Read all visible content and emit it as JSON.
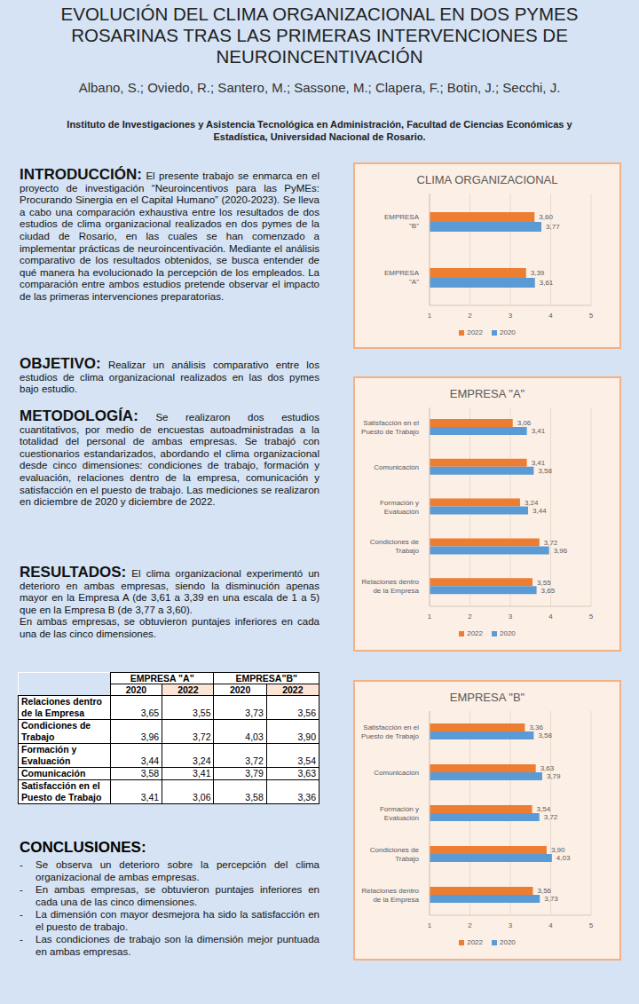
{
  "header": {
    "title": "EVOLUCIÓN DEL CLIMA ORGANIZACIONAL EN DOS PYMES ROSARINAS TRAS LAS PRIMERAS INTERVENCIONES DE NEUROINCENTIVACIÓN",
    "authors": "Albano, S.; Oviedo, R.; Santero, M.; Sassone, M.; Clapera, F.; Botin, J.; Secchi, J.",
    "institution": "Instituto de Investigaciones y Asistencia Tecnológica en Administración, Facultad de Ciencias Económicas y Estadística, Universidad Nacional de Rosario."
  },
  "sections": [
    {
      "heading": "INTRODUCCIÓN",
      "paragraphs": [
        "El presente trabajo se enmarca en el proyecto de investigación “Neuroincentivos para las PyMEs: Procurando Sinergia en el Capital Humano” (2020-2023). Se lleva a cabo una comparación exhaustiva entre los resultados de dos estudios de clima organizacional realizados en dos pymes de la ciudad de Rosario, en las cuales se han comenzado a implementar prácticas de neuroincentivación. Mediante el análisis comparativo de los resultados obtenidos, se busca entender de qué manera ha evolucionado la percepción de los empleados. La comparación entre ambos estudios pretende observar el impacto de las primeras intervenciones preparatorias."
      ]
    },
    {
      "heading": "OBJETIVO",
      "paragraphs": [
        "Realizar un análisis comparativo entre los estudios de clima organizacional realizados en las dos pymes bajo estudio."
      ]
    },
    {
      "heading": "METODOLOGÍA",
      "paragraphs": [
        "Se realizaron dos estudios cuantitativos, por medio de encuestas autoadministradas a la totalidad del personal de ambas empresas. Se trabajó con cuestionarios estandarizados, abordando el clima organizacional desde cinco dimensiones: condiciones de trabajo, formación y evaluación, relaciones dentro de la empresa, comunicación y satisfacción en el puesto de trabajo. Las mediciones se realizaron en diciembre de 2020 y diciembre de 2022."
      ]
    },
    {
      "heading": "RESULTADOS",
      "paragraphs": [
        "El clima organizacional experimentó un deterioro en ambas empresas, siendo la disminución apenas mayor en la Empresa A (de 3,61 a 3,39 en una escala de 1 a 5) que en la Empresa B (de 3,77 a 3,60).",
        "En ambas empresas, se obtuvieron puntajes inferiores en cada una de las cinco dimensiones."
      ]
    }
  ],
  "table": {
    "groups": [
      "EMPRESA \"A\"",
      "EMPRESA\"B\""
    ],
    "years": [
      "2020",
      "2022",
      "2020",
      "2022"
    ],
    "rows": [
      [
        "Relaciones dentro de la Empresa",
        "3,65",
        "3,55",
        "3,73",
        "3,56"
      ],
      [
        "Condiciones de Trabajo",
        "3,96",
        "3,72",
        "4,03",
        "3,90"
      ],
      [
        "Formación y Evaluación",
        "3,44",
        "3,24",
        "3,72",
        "3,54"
      ],
      [
        "Comunicación",
        "3,58",
        "3,41",
        "3,79",
        "3,63"
      ],
      [
        "Satisfacción en el Puesto de Trabajo",
        "3,41",
        "3,06",
        "3,58",
        "3,36"
      ]
    ]
  },
  "conclusions": {
    "heading": "CONCLUSIONES:",
    "items": [
      "Se observa un deterioro sobre la percepción del clima organizacional de ambas empresas.",
      "En ambas empresas, se obtuvieron puntajes inferiores en cada una de las cinco dimensiones.",
      "La dimensión con mayor desmejora ha sido la satisfacción en el puesto de trabajo.",
      "Las condiciones de trabajo son la dimensión mejor puntuada en ambas empresas."
    ]
  },
  "chart_data": [
    {
      "type": "bar",
      "title": "CLIMA ORGANIZACIONAL",
      "orientation": "horizontal",
      "categories": [
        "EMPRESA \"B\"",
        "EMPRESA \"A\""
      ],
      "series": [
        {
          "name": "2022",
          "color": "#ed7d31",
          "values": [
            3.6,
            3.39
          ],
          "value_labels": [
            "3,60",
            "3,39"
          ]
        },
        {
          "name": "2020",
          "color": "#5b9bd5",
          "values": [
            3.77,
            3.61
          ],
          "value_labels": [
            "3,77",
            "3,61"
          ]
        }
      ],
      "xlim": [
        1,
        5
      ],
      "xticks": [
        1,
        2,
        3,
        4,
        5
      ],
      "grid": true,
      "data_labels": true,
      "legend": "bottom"
    },
    {
      "type": "bar",
      "title": "EMPRESA \"A\"",
      "orientation": "horizontal",
      "categories": [
        "Satisfacción en el Puesto de Trabajo",
        "Comunicación",
        "Formación y Evaluación",
        "Condiciones de Trabajo",
        "Relaciones dentro de la Empresa"
      ],
      "series": [
        {
          "name": "2022",
          "color": "#ed7d31",
          "values": [
            3.06,
            3.41,
            3.24,
            3.72,
            3.55
          ],
          "value_labels": [
            "3,06",
            "3,41",
            "3,24",
            "3,72",
            "3,55"
          ]
        },
        {
          "name": "2020",
          "color": "#5b9bd5",
          "values": [
            3.41,
            3.58,
            3.44,
            3.96,
            3.65
          ],
          "value_labels": [
            "3,41",
            "3,58",
            "3,44",
            "3,96",
            "3,65"
          ]
        }
      ],
      "xlim": [
        1,
        5
      ],
      "xticks": [
        1,
        2,
        3,
        4,
        5
      ],
      "grid": true,
      "data_labels": true,
      "legend": "bottom"
    },
    {
      "type": "bar",
      "title": "EMPRESA \"B\"",
      "orientation": "horizontal",
      "categories": [
        "Satisfacción en el Puesto de Trabajo",
        "Comunicación",
        "Formación y Evaluación",
        "Condiciones de Trabajo",
        "Relaciones dentro de la Empresa"
      ],
      "series": [
        {
          "name": "2022",
          "color": "#ed7d31",
          "values": [
            3.36,
            3.63,
            3.54,
            3.9,
            3.56
          ],
          "value_labels": [
            "3,36",
            "3,63",
            "3,54",
            "3,90",
            "3,56"
          ]
        },
        {
          "name": "2020",
          "color": "#5b9bd5",
          "values": [
            3.58,
            3.79,
            3.72,
            4.03,
            3.73
          ],
          "value_labels": [
            "3,58",
            "3,79",
            "3,72",
            "4,03",
            "3,73"
          ]
        }
      ],
      "xlim": [
        1,
        5
      ],
      "xticks": [
        1,
        2,
        3,
        4,
        5
      ],
      "grid": true,
      "data_labels": true,
      "legend": "bottom"
    }
  ]
}
